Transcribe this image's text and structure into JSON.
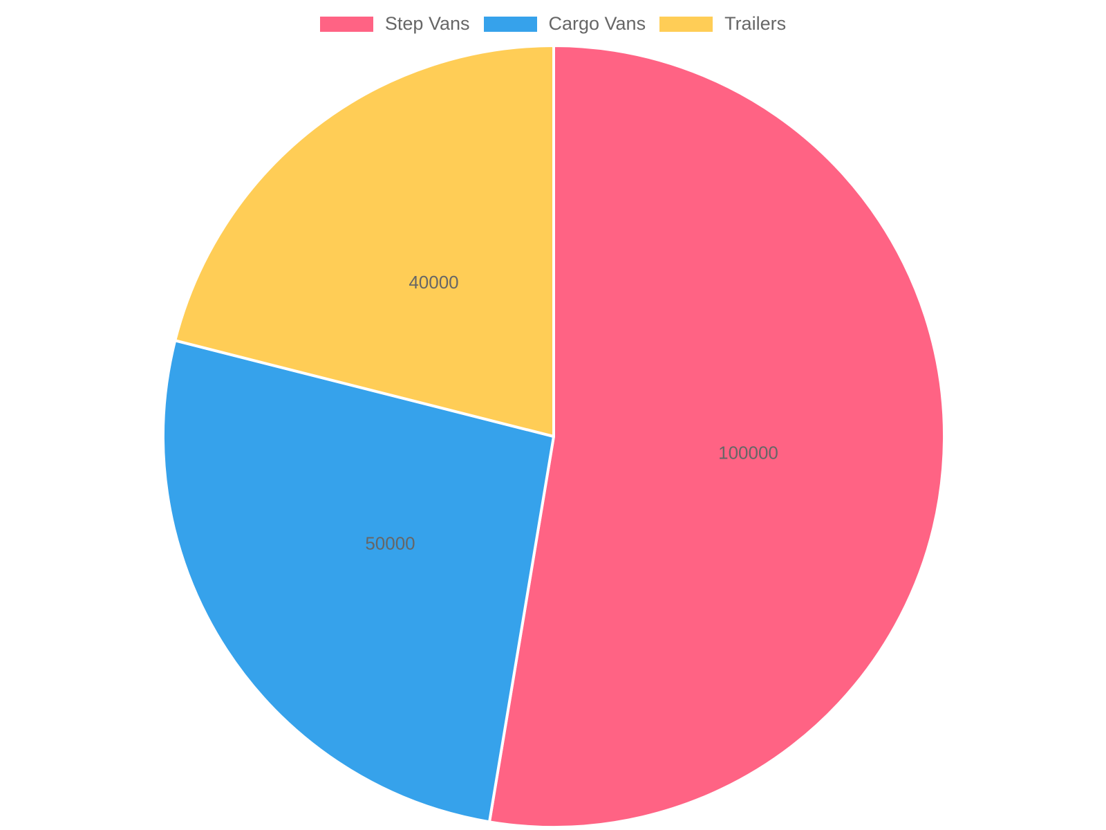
{
  "chart_data": {
    "type": "pie",
    "title": "",
    "categories": [
      "Step Vans",
      "Cargo Vans",
      "Trailers"
    ],
    "values": [
      100000,
      50000,
      40000
    ],
    "data_labels": [
      "100000",
      "50000",
      "40000"
    ],
    "colors": [
      "#FF6384",
      "#36A2EB",
      "#FFCD56"
    ],
    "border_color": "#FFFFFF",
    "label_color": "#666666",
    "legend_position": "top",
    "start_angle_deg": 0,
    "direction": "clockwise"
  },
  "legend": {
    "items": [
      {
        "label": "Step Vans",
        "color": "#FF6384"
      },
      {
        "label": "Cargo Vans",
        "color": "#36A2EB"
      },
      {
        "label": "Trailers",
        "color": "#FFCD56"
      }
    ]
  }
}
